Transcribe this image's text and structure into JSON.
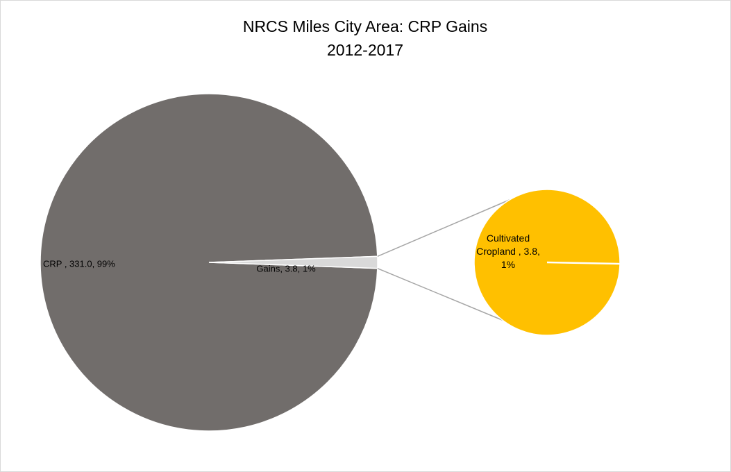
{
  "chart_data": {
    "type": "pie-of-pie",
    "title": "NRCS Miles City Area: CRP Gains",
    "subtitle": "2012-2017",
    "primary": {
      "values": [
        331.0,
        3.8
      ],
      "value_labels": [
        "CRP , 331.0, 99%",
        "Gains, 3.8, 1%"
      ],
      "colors": [
        "#716d6b",
        "#d9d9d9"
      ]
    },
    "secondary": {
      "values": [
        3.8
      ],
      "value_labels": [
        "Cultivated Cropland , 3.8, 1%"
      ],
      "colors": [
        "#ffc000"
      ]
    }
  }
}
